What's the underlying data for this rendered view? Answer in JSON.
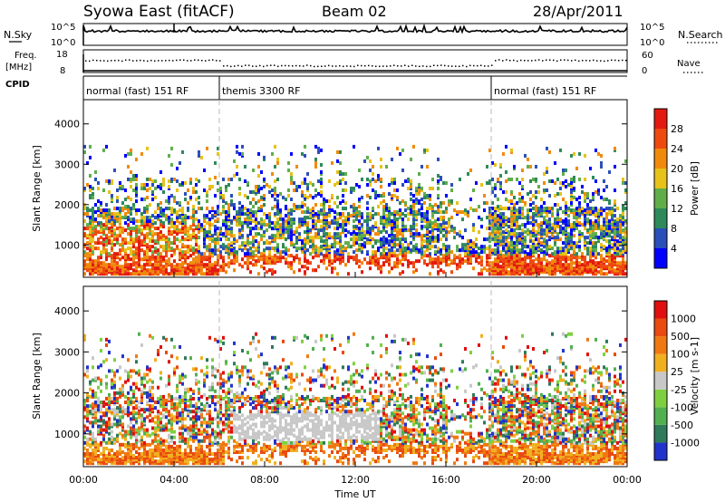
{
  "header": {
    "site": "Syowa East (fitACF)",
    "beam": "Beam 02",
    "date": "28/Apr/2011"
  },
  "status_panels": {
    "nsky_label": "N.Sky",
    "nsearch_label": "N.Search",
    "nsky_ticks": [
      "10^5",
      "10^0"
    ],
    "nsearch_ticks": [
      "10^5",
      "10^0"
    ],
    "freq_label": "Freq.",
    "freq_unit": "[MHz]",
    "freq_ticks": [
      "18",
      "8"
    ],
    "nave_label": "Nave",
    "nave_ticks": [
      "60",
      "0"
    ],
    "cpid_label": "CPID"
  },
  "cpid_segments": [
    {
      "label": "normal (fast) 151 RF",
      "start_hour": 0,
      "end_hour": 6
    },
    {
      "label": "themis 3300 RF",
      "start_hour": 6,
      "end_hour": 18
    },
    {
      "label": "normal (fast) 151 RF",
      "start_hour": 18,
      "end_hour": 24
    }
  ],
  "chart_data": [
    {
      "type": "heatmap",
      "name": "power",
      "ylabel": "Slant Range [km]",
      "ylim": [
        200,
        4600
      ],
      "yticks": [
        "1000",
        "2000",
        "3000",
        "4000"
      ],
      "xlim_hours": [
        0,
        24
      ],
      "colorbar": {
        "label": "Power [dB]",
        "ticks": [
          "4",
          "8",
          "12",
          "16",
          "20",
          "24",
          "28"
        ],
        "colors": [
          "#0000ff",
          "#2a4fb8",
          "#2e8a5a",
          "#5fae4a",
          "#e7c21a",
          "#f08a0c",
          "#ee4a10",
          "#e31a10"
        ]
      }
    },
    {
      "type": "heatmap",
      "name": "velocity",
      "ylabel": "Slant Range [km]",
      "ylim": [
        200,
        4600
      ],
      "yticks": [
        "1000",
        "2000",
        "3000",
        "4000"
      ],
      "xlabel": "Time UT",
      "xticks": [
        "00:00",
        "04:00",
        "08:00",
        "12:00",
        "16:00",
        "20:00",
        "00:00"
      ],
      "xlim_hours": [
        0,
        24
      ],
      "colorbar": {
        "label": "Velocity [m s-1]",
        "ticks": [
          "1000",
          "500",
          "100",
          "25",
          "-25",
          "-100",
          "-500",
          "-1000"
        ],
        "colors": [
          "#2233cc",
          "#2e7a5a",
          "#52b050",
          "#7fd040",
          "#c8c8c8",
          "#f0b020",
          "#f07810",
          "#e84a10",
          "#e01010"
        ]
      }
    }
  ]
}
